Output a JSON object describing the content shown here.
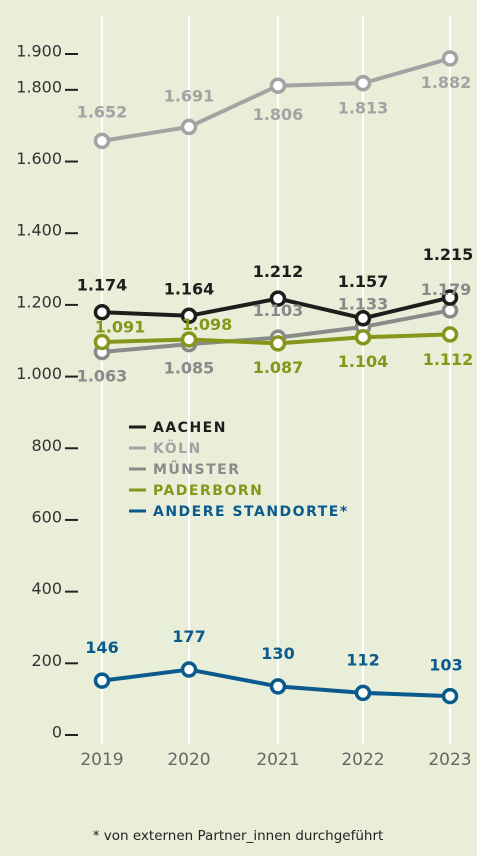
{
  "chart_data": {
    "type": "line",
    "x": [
      "2019",
      "2020",
      "2021",
      "2022",
      "2023"
    ],
    "ylim": [
      0,
      1900
    ],
    "yticks": [
      0,
      200,
      400,
      600,
      800,
      {
        "value": 1000,
        "label": "1.000"
      },
      {
        "value": 1200,
        "label": "1.200"
      },
      {
        "value": 1400,
        "label": "1.400"
      },
      {
        "value": 1600,
        "label": "1.600"
      },
      {
        "value": 1800,
        "label": "1.800"
      },
      {
        "value": 1900,
        "label": "1.900"
      }
    ],
    "series": [
      {
        "name": "AACHEN",
        "color": "#1d1d1b",
        "values": [
          1174,
          1164,
          1212,
          1157,
          1215
        ],
        "value_labels": [
          "1.174",
          "1.164",
          "1.212",
          "1.157",
          "1.215"
        ]
      },
      {
        "name": "KÖLN",
        "color": "#a3a3a3",
        "values": [
          1652,
          1691,
          1806,
          1813,
          1882
        ],
        "value_labels": [
          "1.652",
          "1.691",
          "1.806",
          "1.813",
          "1.882"
        ]
      },
      {
        "name": "MÜNSTER",
        "color": "#8a8a8a",
        "values": [
          1063,
          1085,
          1103,
          1133,
          1179
        ],
        "value_labels": [
          "1.063",
          "1.085",
          "1.103",
          "1.133",
          "1.179"
        ]
      },
      {
        "name": "PADERBORN",
        "color": "#87961a",
        "values": [
          1091,
          1098,
          1087,
          1104,
          1112
        ],
        "value_labels": [
          "1.091",
          "1.098",
          "1.087",
          "1.104",
          "1.112"
        ]
      },
      {
        "name": "ANDERE STANDORTE*",
        "color": "#0a5a8e",
        "values": [
          146,
          177,
          130,
          112,
          103
        ],
        "value_labels": [
          "146",
          "177",
          "130",
          "112",
          "103"
        ]
      }
    ],
    "footnote": "* von externen Partner_innen durchgeführt"
  }
}
